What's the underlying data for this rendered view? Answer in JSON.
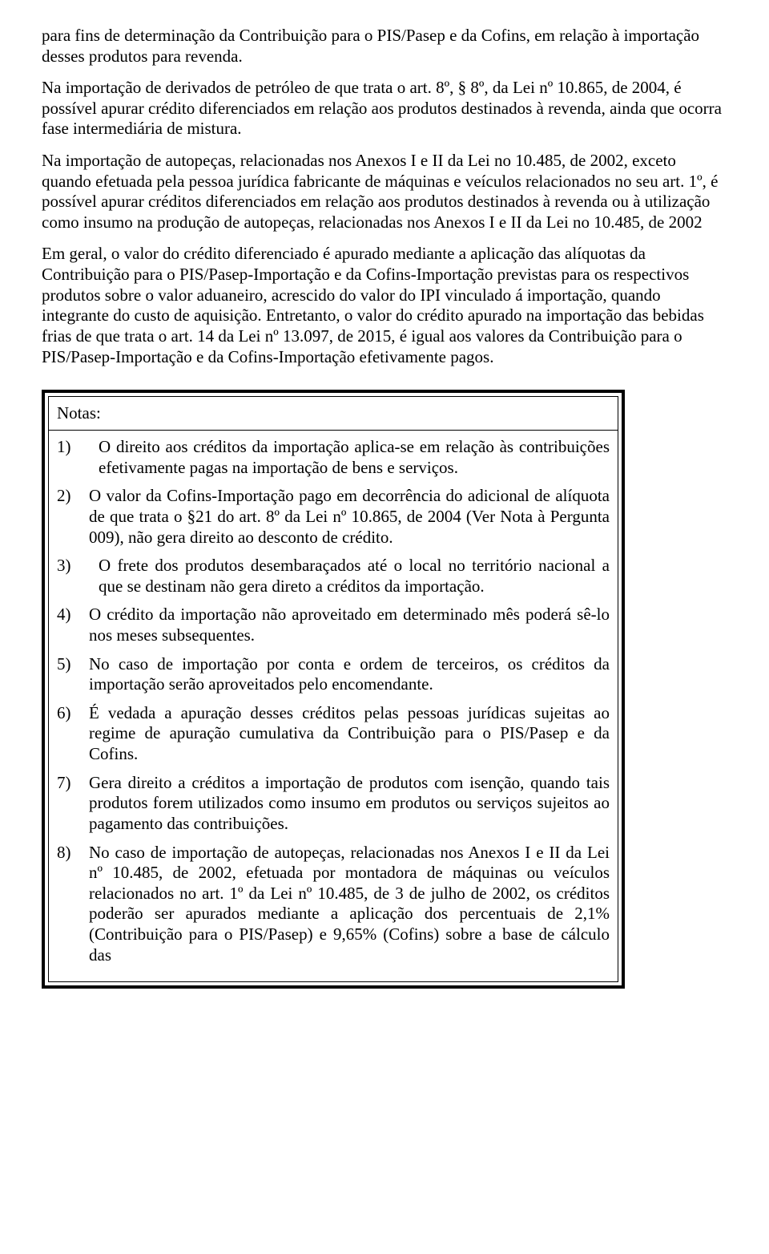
{
  "paragraphs": {
    "p1": "para fins de determinação da Contribuição para o PIS/Pasep e da Cofins, em relação à importação desses produtos para revenda.",
    "p2": "Na importação de derivados de petróleo de que trata o art. 8º, § 8º, da Lei nº 10.865, de 2004, é possível apurar crédito diferenciados em relação aos produtos destinados à revenda, ainda que ocorra fase intermediária de mistura.",
    "p3": "Na importação de autopeças, relacionadas nos Anexos I e II da Lei no 10.485, de 2002, exceto quando efetuada pela pessoa jurídica fabricante de máquinas e veículos relacionados no seu art. 1º, é possível apurar créditos diferenciados em relação aos produtos destinados à revenda ou à utilização como insumo na produção de  autopeças, relacionadas nos Anexos I e II da Lei no 10.485, de 2002",
    "p4": "Em geral, o valor do crédito diferenciado é apurado mediante a aplicação das alíquotas da Contribuição para o PIS/Pasep-Importação e da Cofins-Importação previstas para os respectivos produtos sobre o valor aduaneiro, acrescido do valor do IPI vinculado á importação, quando integrante do custo de aquisição. Entretanto, o valor do crédito apurado na importação das bebidas frias de que trata o art. 14 da Lei nº 13.097, de 2015, é igual aos valores da Contribuição para o PIS/Pasep-Importação e da Cofins-Importação efetivamente pagos."
  },
  "notes": {
    "header": "Notas:",
    "items": [
      {
        "n": "1)",
        "pad": true,
        "text": "O direito aos créditos da importação aplica-se em relação às contribuições efetivamente pagas na importação de bens e serviços."
      },
      {
        "n": "2)",
        "pad": false,
        "text": "O valor da Cofins-Importação pago em decorrência do adicional de alíquota de que trata o §21 do art. 8º da Lei nº 10.865, de 2004 (Ver Nota à Pergunta 009), não gera direito ao desconto de crédito."
      },
      {
        "n": "3)",
        "pad": true,
        "text": "O frete dos produtos desembaraçados até o local no território nacional a que se destinam não gera direto a créditos da importação."
      },
      {
        "n": "4)",
        "pad": false,
        "text": "O crédito da importação não aproveitado em determinado mês poderá sê-lo nos meses subsequentes."
      },
      {
        "n": "5)",
        "pad": false,
        "text": "No caso de importação por conta e ordem de terceiros, os créditos da importação serão aproveitados pelo encomendante."
      },
      {
        "n": "6)",
        "pad": false,
        "text": "É vedada a apuração desses créditos pelas pessoas jurídicas sujeitas ao regime de apuração cumulativa da Contribuição para o PIS/Pasep e da Cofins."
      },
      {
        "n": "7)",
        "pad": false,
        "text": "Gera direito a créditos a importação de produtos com isenção, quando tais produtos forem utilizados como insumo em produtos ou serviços sujeitos ao pagamento das contribuições."
      },
      {
        "n": "8)",
        "pad": false,
        "text": "No caso de importação de autopeças, relacionadas nos Anexos I e II da Lei nº 10.485, de 2002, efetuada por montadora de máquinas ou veículos relacionados no art. 1º da Lei nº 10.485, de 3 de julho de 2002, os créditos poderão ser apurados mediante a aplicação dos percentuais de 2,1% (Contribuição para o PIS/Pasep) e 9,65% (Cofins) sobre a base de cálculo das"
      }
    ]
  }
}
